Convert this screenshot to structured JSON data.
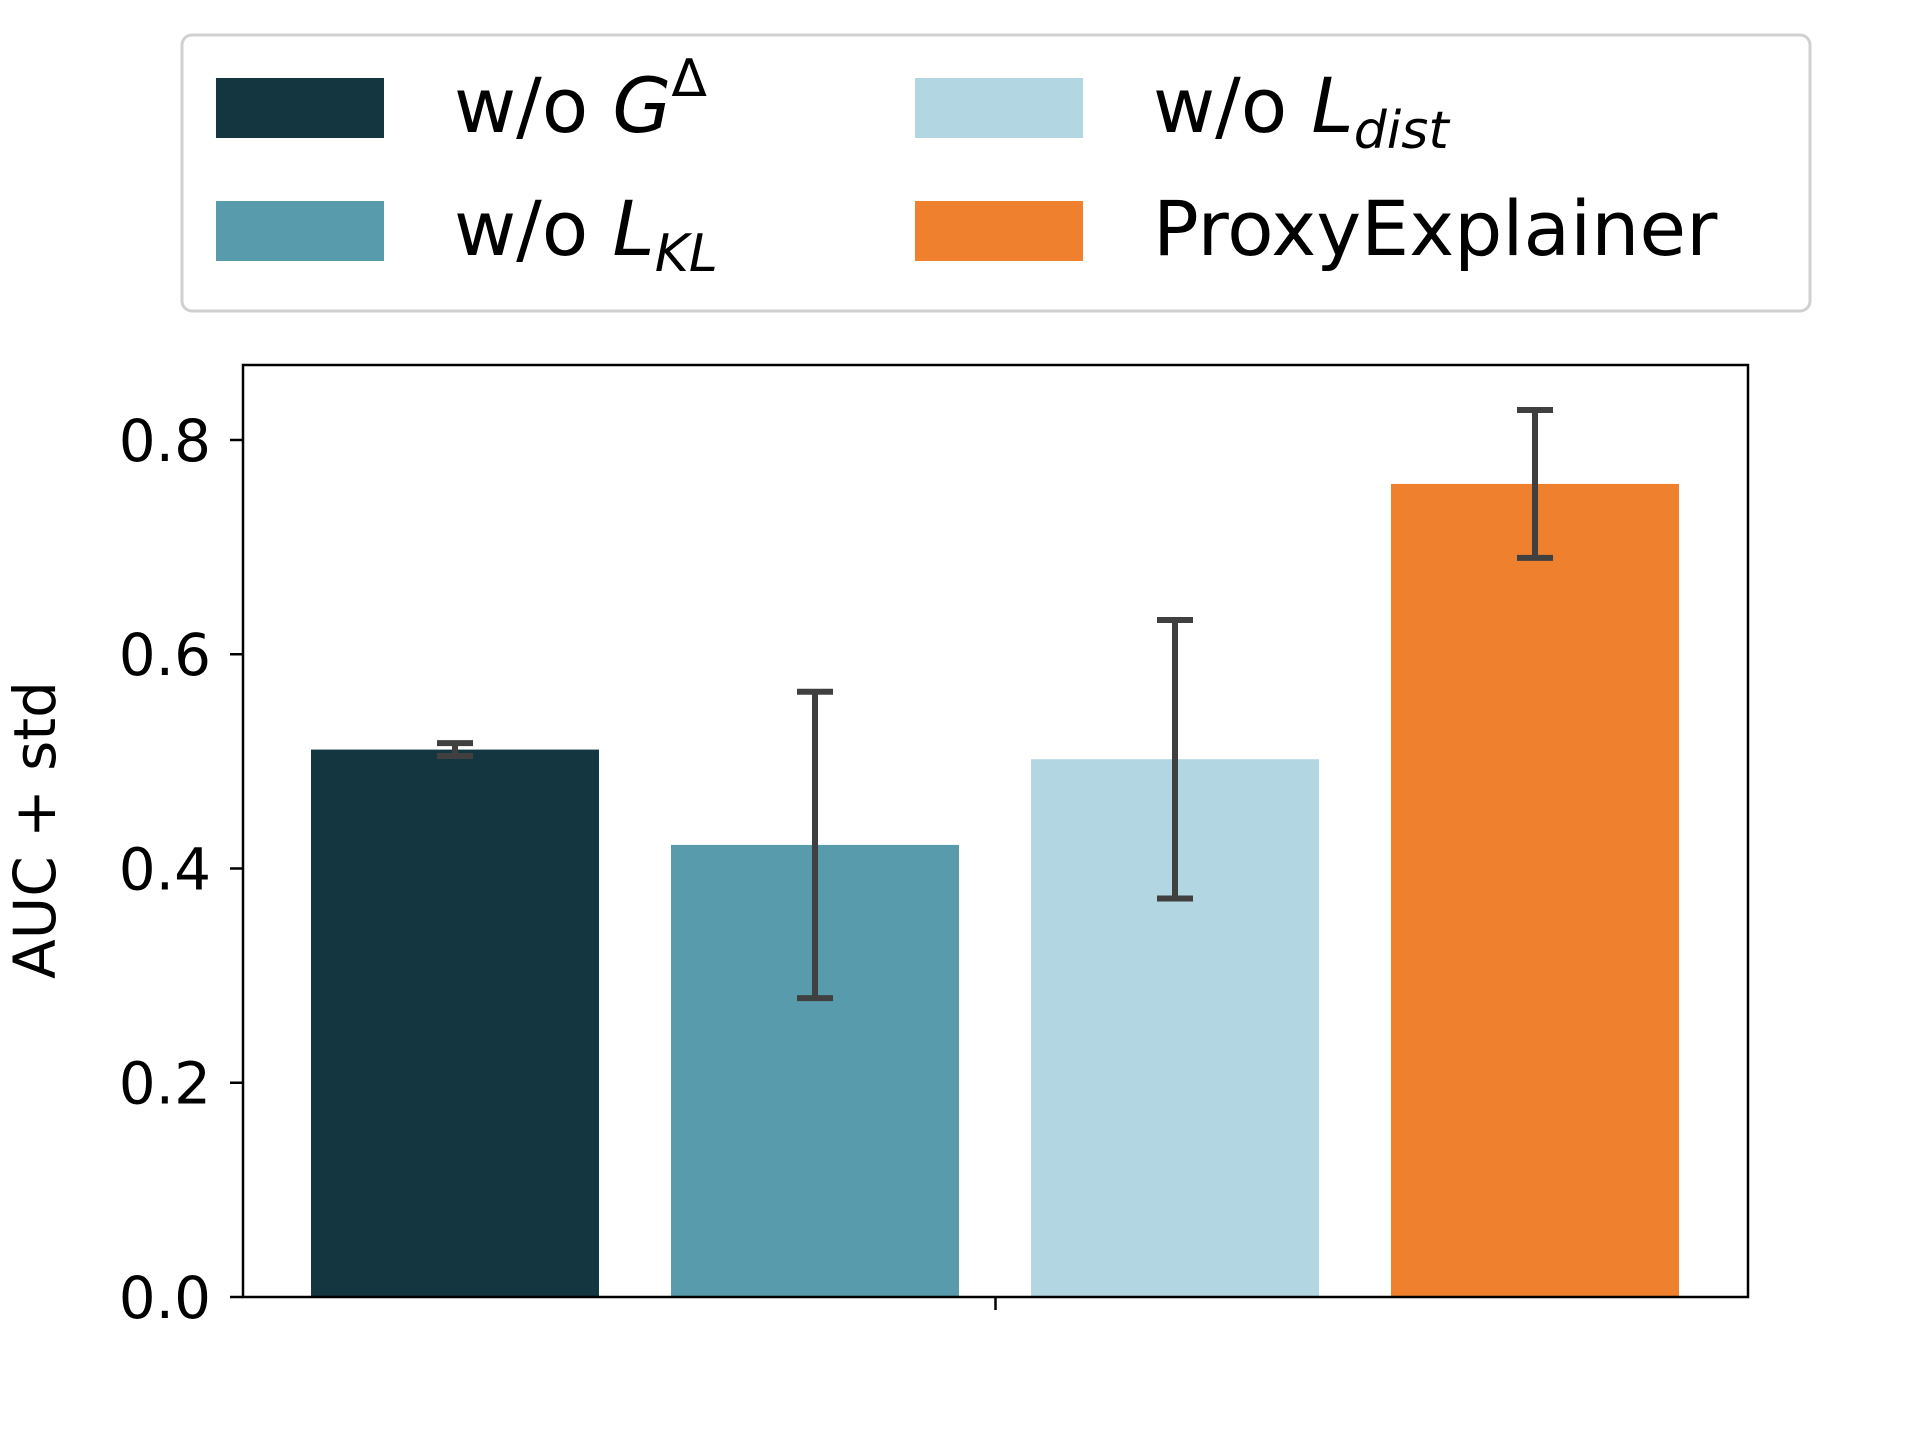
{
  "chart_data": {
    "type": "bar",
    "title": "",
    "xlabel": "",
    "ylabel": "AUC + std",
    "ylim": [
      0,
      0.87
    ],
    "yticks": [
      0.0,
      0.2,
      0.4,
      0.6,
      0.8
    ],
    "ytick_labels": [
      "0.0",
      "0.2",
      "0.4",
      "0.6",
      "0.8"
    ],
    "grid": false,
    "legend_position": "top (above plot), 2 columns",
    "series": [
      {
        "legend": {
          "base": "w/o ",
          "sym": "G",
          "sup": "Δ",
          "sub": ""
        },
        "value": 0.511,
        "std": 0.006,
        "color": "#143640"
      },
      {
        "legend": {
          "base": "w/o ",
          "sym": "L",
          "sup": "",
          "sub": "KL"
        },
        "value": 0.422,
        "std": 0.143,
        "color": "#579bac"
      },
      {
        "legend": {
          "base": "w/o ",
          "sym": "L",
          "sup": "",
          "sub": "dist"
        },
        "value": 0.502,
        "std": 0.13,
        "color": "#b2d7e2"
      },
      {
        "legend": {
          "base": "ProxyExplainer",
          "sym": "",
          "sup": "",
          "sub": ""
        },
        "value": 0.759,
        "std": 0.069,
        "color": "#ef812e"
      }
    ]
  }
}
